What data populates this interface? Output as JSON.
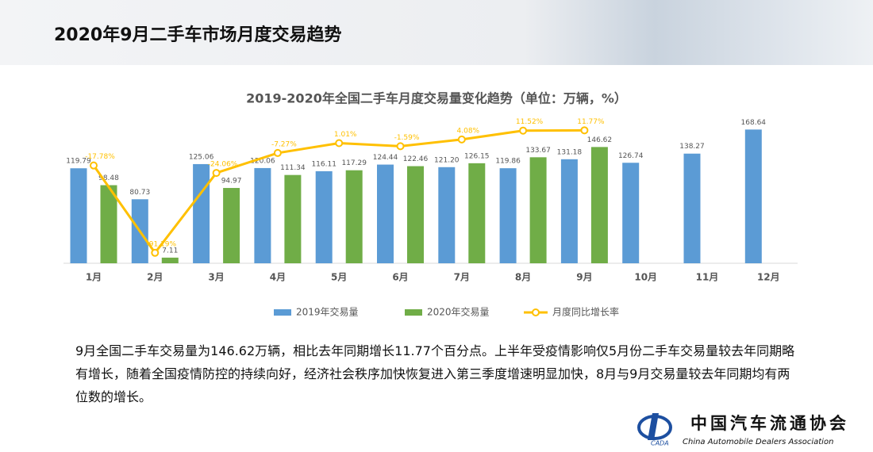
{
  "header": {
    "title": "2020年9月二手车市场月度交易趋势"
  },
  "chart_data": {
    "type": "bar",
    "title": "2019-2020年全国二手车月度交易量变化趋势（单位：万辆，%）",
    "categories": [
      "1月",
      "2月",
      "3月",
      "4月",
      "5月",
      "6月",
      "7月",
      "8月",
      "9月",
      "10月",
      "11月",
      "12月"
    ],
    "series": [
      {
        "name": "2019年交易量",
        "color": "#5b9bd5",
        "values": [
          119.79,
          80.73,
          125.06,
          120.06,
          116.11,
          124.44,
          121.2,
          119.86,
          131.18,
          126.74,
          138.27,
          168.64
        ],
        "value_labels": [
          "119.79",
          "80.73",
          "125.06",
          "120.06",
          "116.11",
          "124.44",
          "121.20",
          "119.86",
          "131.18",
          "126.74",
          "138.27",
          "168.64"
        ]
      },
      {
        "name": "2020年交易量",
        "color": "#70ad47",
        "values": [
          98.48,
          7.11,
          94.97,
          111.34,
          117.29,
          122.46,
          126.15,
          133.67,
          146.62,
          null,
          null,
          null
        ]
      },
      {
        "name": "月度同比增长率",
        "color": "#ffc000",
        "type": "line",
        "axis": "y2",
        "values": [
          -17.78,
          -91.19,
          -24.06,
          -7.27,
          1.01,
          -1.59,
          4.08,
          11.52,
          11.77,
          null,
          null,
          null
        ],
        "value_labels": [
          "-17.78%",
          "-91.19%",
          "-24.06%",
          "-7.27%",
          "1.01%",
          "-1.59%",
          "4.08%",
          "11.52%",
          "11.77%",
          null,
          null,
          null
        ]
      }
    ],
    "ylim": [
      0,
      180
    ],
    "y2lim": [
      -100,
      20
    ],
    "legend": "bottom"
  },
  "body": {
    "text": "9月全国二手车交易量为146.62万辆，相比去年同期增长11.77个百分点。上半年受疫情影响仅5月份二手车交易量较去年同期略有增长，随着全国疫情防控的持续向好，经济社会秩序加快恢复进入第三季度增速明显加快，8月与9月交易量较去年同期均有两位数的增长。"
  },
  "logo": {
    "name": "中国汽车流通协会",
    "english": "China Automobile Dealers Association",
    "abbr": "CADA"
  }
}
